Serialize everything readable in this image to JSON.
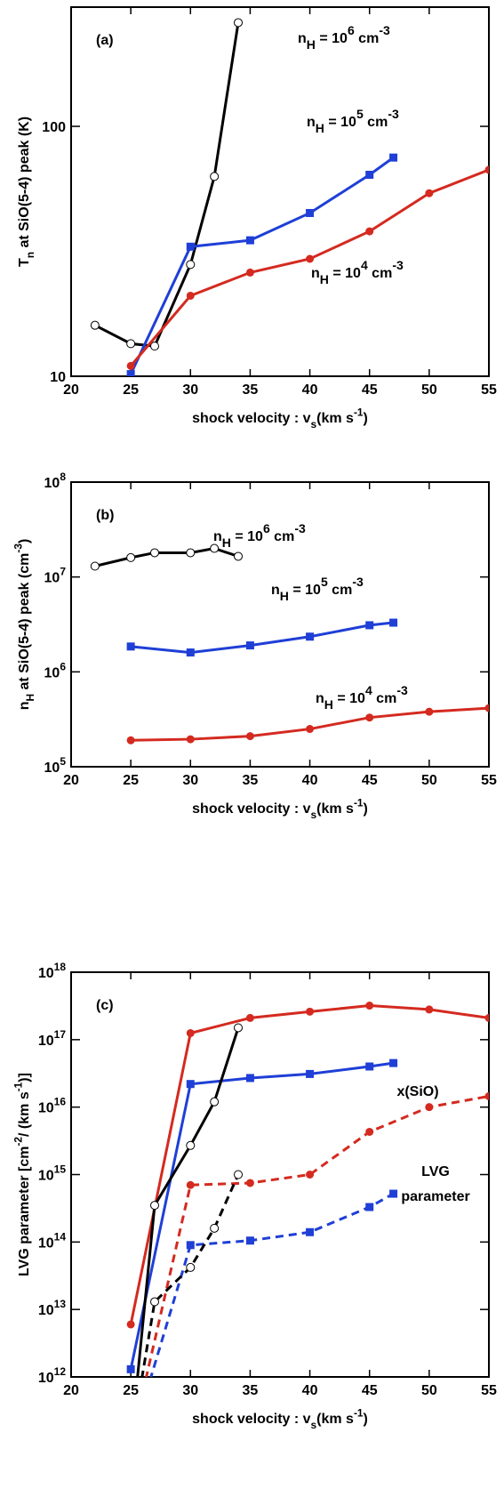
{
  "chart_data": [
    {
      "type": "line",
      "panel_label": "(a)",
      "log_y": true,
      "x_label": [
        {
          "text": "shock velocity : v"
        },
        {
          "text": "s",
          "sub": true
        },
        {
          "text": "(km s"
        },
        {
          "text": "-1",
          "sup": true
        },
        {
          "text": ")"
        }
      ],
      "y_label": [
        {
          "text": "T"
        },
        {
          "text": "n",
          "sub": true
        },
        {
          "text": " at SiO(5-4) peak (K)"
        }
      ],
      "xlim": [
        20,
        55
      ],
      "xticks": [
        20,
        25,
        30,
        35,
        40,
        45,
        50,
        55
      ],
      "ylim": [
        10,
        300
      ],
      "yticks": [
        10,
        100
      ],
      "series": [
        {
          "label": [
            {
              "text": "n"
            },
            {
              "text": "H",
              "sub": true
            },
            {
              "text": " = 10"
            },
            {
              "text": "6",
              "sup": true
            },
            {
              "text": " cm"
            },
            {
              "text": "-3",
              "sup": true
            }
          ],
          "color": "#000000",
          "marker": "open-circle",
          "x": [
            22,
            25,
            27,
            30,
            32,
            34
          ],
          "values": [
            16,
            13.5,
            13.2,
            28,
            63,
            260
          ]
        },
        {
          "label": [
            {
              "text": "n"
            },
            {
              "text": "H",
              "sub": true
            },
            {
              "text": " = 10"
            },
            {
              "text": "5",
              "sup": true
            },
            {
              "text": " cm"
            },
            {
              "text": "-3",
              "sup": true
            }
          ],
          "color": "#1f3fd6",
          "marker": "square",
          "x": [
            25,
            30,
            35,
            40,
            45,
            47
          ],
          "values": [
            10.2,
            33,
            35,
            45,
            64,
            75
          ]
        },
        {
          "label": [
            {
              "text": "n"
            },
            {
              "text": "H",
              "sub": true
            },
            {
              "text": " = 10"
            },
            {
              "text": "4",
              "sup": true
            },
            {
              "text": " cm"
            },
            {
              "text": "-3",
              "sup": true
            }
          ],
          "color": "#d42a20",
          "marker": "circle",
          "x": [
            25,
            30,
            35,
            40,
            45,
            50,
            55
          ],
          "values": [
            11,
            21,
            26,
            29.5,
            38,
            54,
            67
          ]
        }
      ]
    },
    {
      "type": "line",
      "panel_label": "(b)",
      "log_y": true,
      "x_label": [
        {
          "text": "shock velocity : v"
        },
        {
          "text": "s",
          "sub": true
        },
        {
          "text": "(km s"
        },
        {
          "text": "-1",
          "sup": true
        },
        {
          "text": ")"
        }
      ],
      "y_label": [
        {
          "text": "n"
        },
        {
          "text": "H",
          "sub": true
        },
        {
          "text": " at SiO(5-4) peak (cm"
        },
        {
          "text": "-3",
          "sup": true
        },
        {
          "text": ")"
        }
      ],
      "xlim": [
        20,
        55
      ],
      "xticks": [
        20,
        25,
        30,
        35,
        40,
        45,
        50,
        55
      ],
      "ylim": [
        100000,
        100000000
      ],
      "yticks": [
        {
          "value": 100000,
          "label": "10",
          "exponent": "5"
        },
        {
          "value": 1000000,
          "label": "10",
          "exponent": "6"
        },
        {
          "value": 10000000,
          "label": "10",
          "exponent": "7"
        },
        {
          "value": 100000000,
          "label": "10",
          "exponent": "8"
        }
      ],
      "series": [
        {
          "label": [
            {
              "text": "n"
            },
            {
              "text": "H",
              "sub": true
            },
            {
              "text": " = 10"
            },
            {
              "text": "6",
              "sup": true
            },
            {
              "text": " cm"
            },
            {
              "text": "-3",
              "sup": true
            }
          ],
          "color": "#000000",
          "marker": "open-circle",
          "x": [
            22,
            25,
            27,
            30,
            32,
            34
          ],
          "values": [
            13000000,
            16000000,
            18000000,
            18000000,
            20000000,
            16500000
          ]
        },
        {
          "label": [
            {
              "text": "n"
            },
            {
              "text": "H",
              "sub": true
            },
            {
              "text": " = 10"
            },
            {
              "text": "5",
              "sup": true
            },
            {
              "text": " cm"
            },
            {
              "text": "-3",
              "sup": true
            }
          ],
          "color": "#1f3fd6",
          "marker": "square",
          "x": [
            25,
            30,
            35,
            40,
            45,
            47
          ],
          "values": [
            1850000,
            1600000,
            1900000,
            2350000,
            3100000,
            3300000
          ]
        },
        {
          "label": [
            {
              "text": "n"
            },
            {
              "text": "H",
              "sub": true
            },
            {
              "text": " = 10"
            },
            {
              "text": "4",
              "sup": true
            },
            {
              "text": " cm"
            },
            {
              "text": "-3",
              "sup": true
            }
          ],
          "color": "#d42a20",
          "marker": "circle",
          "x": [
            25,
            30,
            35,
            40,
            45,
            50,
            55
          ],
          "values": [
            190000,
            195000,
            210000,
            250000,
            330000,
            380000,
            415000
          ]
        }
      ]
    },
    {
      "type": "line",
      "panel_label": "(c)",
      "log_y": true,
      "x_label": [
        {
          "text": "shock velocity : v"
        },
        {
          "text": "s",
          "sub": true
        },
        {
          "text": "(km s"
        },
        {
          "text": "-1",
          "sup": true
        },
        {
          "text": ")"
        }
      ],
      "y_label": [
        {
          "text": "LVG parameter [cm"
        },
        {
          "text": "-2",
          "sup": true
        },
        {
          "text": "/ (km s"
        },
        {
          "text": "-1",
          "sup": true
        },
        {
          "text": ")]"
        }
      ],
      "annotations": [
        "x(SiO)",
        "LVG",
        "parameter"
      ],
      "xlim": [
        20,
        55
      ],
      "xticks": [
        20,
        25,
        30,
        35,
        40,
        45,
        50,
        55
      ],
      "ylim": [
        1000000000000,
        1000000000000000000
      ],
      "yticks": [
        {
          "value": 1000000000000,
          "label": "10",
          "exponent": "12"
        },
        {
          "value": 10000000000000,
          "label": "10",
          "exponent": "13"
        },
        {
          "value": 100000000000000,
          "label": "10",
          "exponent": "14"
        },
        {
          "value": 1000000000000000,
          "label": "10",
          "exponent": "15"
        },
        {
          "value": 10000000000000000,
          "label": "10",
          "exponent": "16"
        },
        {
          "value": 100000000000000000,
          "label": "10",
          "exponent": "17"
        },
        {
          "value": 1000000000000000000,
          "label": "10",
          "exponent": "18"
        }
      ],
      "series": [
        {
          "color": "#d42a20",
          "marker": "circle",
          "dash": false,
          "x": [
            25,
            30,
            35,
            40,
            45,
            50,
            55
          ],
          "values": [
            6000000000000,
            125000000000000000,
            210000000000000000,
            260000000000000000,
            320000000000000000,
            280000000000000000,
            210000000000000000
          ]
        },
        {
          "color": "#1f3fd6",
          "marker": "square",
          "dash": false,
          "x": [
            25,
            30,
            35,
            40,
            45,
            47
          ],
          "values": [
            1300000000000,
            22000000000000000,
            27000000000000000,
            31000000000000000,
            40000000000000000,
            45000000000000000
          ]
        },
        {
          "color": "#000000",
          "marker": "open-circle",
          "dash": false,
          "x": [
            25,
            27,
            30,
            32,
            34
          ],
          "values": [
            100000000000,
            350000000000000,
            2700000000000000,
            12000000000000000,
            150000000000000000
          ]
        },
        {
          "color": "#d42a20",
          "marker": "circle",
          "dash": true,
          "x": [
            25,
            30,
            35,
            40,
            45,
            50,
            55
          ],
          "values": [
            100000000000,
            700000000000000,
            750000000000000,
            1000000000000000,
            4300000000000000,
            10000000000000000,
            14500000000000000
          ]
        },
        {
          "color": "#1f3fd6",
          "marker": "square",
          "dash": true,
          "x": [
            25,
            30,
            35,
            40,
            45,
            47
          ],
          "values": [
            100000000000,
            90000000000000,
            105000000000000,
            140000000000000,
            330000000000000,
            520000000000000
          ]
        },
        {
          "color": "#000000",
          "marker": "open-circle",
          "dash": true,
          "x": [
            25,
            27,
            30,
            32,
            34
          ],
          "values": [
            100000000000,
            13000000000000,
            42000000000000,
            160000000000000,
            1000000000000000
          ]
        }
      ]
    }
  ]
}
